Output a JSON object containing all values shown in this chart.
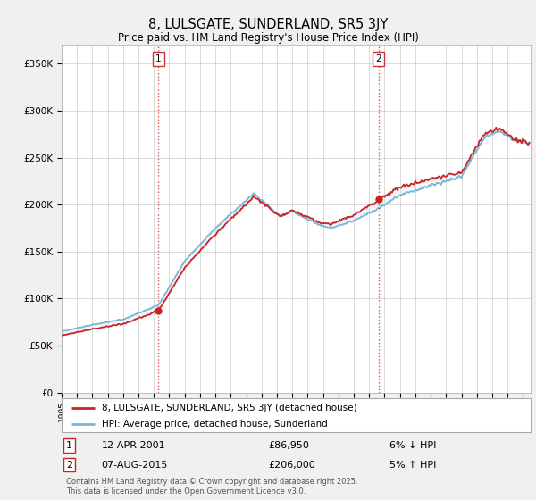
{
  "title": "8, LULSGATE, SUNDERLAND, SR5 3JY",
  "subtitle": "Price paid vs. HM Land Registry's House Price Index (HPI)",
  "ylabel_ticks": [
    "£0",
    "£50K",
    "£100K",
    "£150K",
    "£200K",
    "£250K",
    "£300K",
    "£350K"
  ],
  "ytick_values": [
    0,
    50000,
    100000,
    150000,
    200000,
    250000,
    300000,
    350000
  ],
  "ylim": [
    0,
    370000
  ],
  "xlim_start": 1995.0,
  "xlim_end": 2025.5,
  "hpi_color": "#7ab4d8",
  "price_color": "#cc2222",
  "fill_color": "#c8dff0",
  "vline_color": "#cc3333",
  "transaction1_x": 2001.28,
  "transaction1_y": 86950,
  "transaction2_x": 2015.6,
  "transaction2_y": 206000,
  "legend_property_label": "8, LULSGATE, SUNDERLAND, SR5 3JY (detached house)",
  "legend_hpi_label": "HPI: Average price, detached house, Sunderland",
  "annotation1_date": "12-APR-2001",
  "annotation1_price": "£86,950",
  "annotation1_pct": "6% ↓ HPI",
  "annotation2_date": "07-AUG-2015",
  "annotation2_price": "£206,000",
  "annotation2_pct": "5% ↑ HPI",
  "footnote": "Contains HM Land Registry data © Crown copyright and database right 2025.\nThis data is licensed under the Open Government Licence v3.0.",
  "background_color": "#f0f0f0",
  "plot_background": "#ffffff",
  "grid_color": "#cccccc"
}
